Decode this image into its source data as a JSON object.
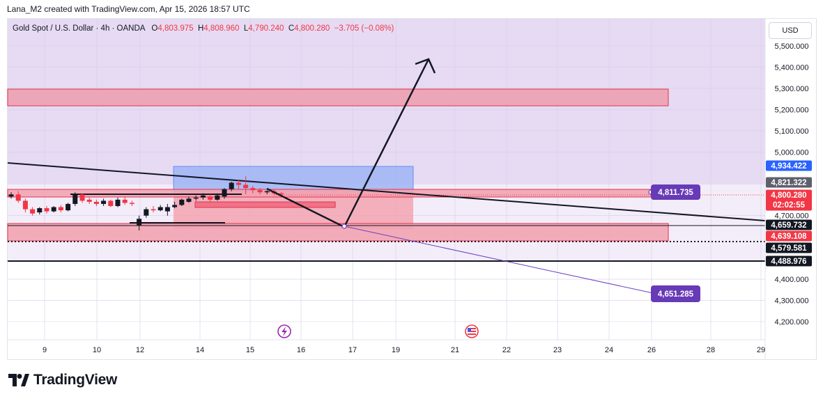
{
  "header": {
    "attribution": "Lana_M2 created with TradingView.com, Apr 15, 2026 18:57 UTC"
  },
  "symbol": {
    "name": "Gold Spot / U.S. Dollar · 4h · OANDA",
    "o_label": "O",
    "o_value": "4,803.975",
    "h_label": "H",
    "h_value": "4,808.960",
    "l_label": "L",
    "l_value": "4,790.240",
    "c_label": "C",
    "c_value": "4,800.280",
    "change": "−3.705 (−0.08%)"
  },
  "currency_button": "USD",
  "brand": {
    "name": "TradingView",
    "logo_icon": "tradingview-logo-icon"
  },
  "colors": {
    "bullish": "#131722",
    "bearish": "#f23645",
    "zone_fill": "#f0a0ad",
    "zone_border": "#e0334d",
    "blue_zone": "#9db4f5",
    "purple_bg": "#e6dbf3",
    "accent_purple": "#6a3fc0"
  },
  "chart_data": {
    "type": "candlestick",
    "y_axis": {
      "unit": "USD",
      "ticks": [
        "5,500.000",
        "5,400.000",
        "5,300.000",
        "5,200.000",
        "5,100.000",
        "5,000.000",
        "4,700.000",
        "4,400.000",
        "4,300.000",
        "4,200.000"
      ]
    },
    "x_axis": {
      "ticks": [
        "9",
        "10",
        "12",
        "14",
        "15",
        "16",
        "17",
        "19",
        "21",
        "22",
        "23",
        "24",
        "26",
        "28",
        "29"
      ]
    },
    "price_badges": [
      {
        "label": "4,934.422",
        "price": 4934.422,
        "color": "#2962ff"
      },
      {
        "label": "4,821.322",
        "price": 4821.322,
        "color": "#5d606b"
      },
      {
        "label": "4,800.280",
        "price": 4800.28,
        "color": "#f23645",
        "sub": "02:02:55"
      },
      {
        "label": "4,659.732",
        "price": 4659.732,
        "color": "#131722"
      },
      {
        "label": "4,639.108",
        "price": 4639.108,
        "color": "#f23645"
      },
      {
        "label": "4,579.581",
        "price": 4579.581,
        "color": "#131722"
      },
      {
        "label": "4,488.976",
        "price": 4488.976,
        "color": "#131722"
      }
    ],
    "annotations": [
      {
        "label": "4,811.735",
        "price": 4811.735
      },
      {
        "label": "4,651.285",
        "price": 4300
      }
    ],
    "candles": [
      {
        "o": 4790,
        "c": 4800,
        "h": 4810,
        "l": 4780
      },
      {
        "o": 4800,
        "c": 4770,
        "h": 4815,
        "l": 4760
      },
      {
        "o": 4770,
        "c": 4730,
        "h": 4780,
        "l": 4715
      },
      {
        "o": 4730,
        "c": 4710,
        "h": 4740,
        "l": 4700
      },
      {
        "o": 4715,
        "c": 4735,
        "h": 4740,
        "l": 4705
      },
      {
        "o": 4735,
        "c": 4720,
        "h": 4745,
        "l": 4710
      },
      {
        "o": 4720,
        "c": 4740,
        "h": 4745,
        "l": 4715
      },
      {
        "o": 4740,
        "c": 4725,
        "h": 4750,
        "l": 4715
      },
      {
        "o": 4725,
        "c": 4755,
        "h": 4760,
        "l": 4720
      },
      {
        "o": 4755,
        "c": 4800,
        "h": 4810,
        "l": 4745
      },
      {
        "o": 4800,
        "c": 4770,
        "h": 4805,
        "l": 4760
      },
      {
        "o": 4775,
        "c": 4765,
        "h": 4785,
        "l": 4755
      },
      {
        "o": 4765,
        "c": 4755,
        "h": 4775,
        "l": 4745
      },
      {
        "o": 4755,
        "c": 4770,
        "h": 4780,
        "l": 4745
      },
      {
        "o": 4770,
        "c": 4745,
        "h": 4775,
        "l": 4740
      },
      {
        "o": 4745,
        "c": 4775,
        "h": 4785,
        "l": 4740
      },
      {
        "o": 4775,
        "c": 4760,
        "h": 4790,
        "l": 4750
      },
      {
        "o": 4760,
        "c": 4755,
        "h": 4770,
        "l": 4745
      },
      {
        "o": 4655,
        "c": 4685,
        "h": 4700,
        "l": 4630
      },
      {
        "o": 4700,
        "c": 4730,
        "h": 4740,
        "l": 4690
      },
      {
        "o": 4730,
        "c": 4725,
        "h": 4745,
        "l": 4715
      },
      {
        "o": 4725,
        "c": 4740,
        "h": 4750,
        "l": 4720
      },
      {
        "o": 4720,
        "c": 4740,
        "h": 4755,
        "l": 4700
      },
      {
        "o": 4740,
        "c": 4750,
        "h": 4765,
        "l": 4735
      },
      {
        "o": 4750,
        "c": 4775,
        "h": 4780,
        "l": 4745
      },
      {
        "o": 4765,
        "c": 4780,
        "h": 4790,
        "l": 4760
      },
      {
        "o": 4780,
        "c": 4785,
        "h": 4795,
        "l": 4770
      },
      {
        "o": 4785,
        "c": 4795,
        "h": 4805,
        "l": 4775
      },
      {
        "o": 4790,
        "c": 4775,
        "h": 4800,
        "l": 4765
      },
      {
        "o": 4775,
        "c": 4795,
        "h": 4805,
        "l": 4770
      },
      {
        "o": 4790,
        "c": 4825,
        "h": 4830,
        "l": 4780
      },
      {
        "o": 4825,
        "c": 4855,
        "h": 4860,
        "l": 4815
      },
      {
        "o": 4855,
        "c": 4845,
        "h": 4870,
        "l": 4825
      },
      {
        "o": 4845,
        "c": 4830,
        "h": 4885,
        "l": 4800
      },
      {
        "o": 4830,
        "c": 4820,
        "h": 4840,
        "l": 4805
      },
      {
        "o": 4820,
        "c": 4810,
        "h": 4830,
        "l": 4800
      },
      {
        "o": 4810,
        "c": 4815,
        "h": 4820,
        "l": 4800
      },
      {
        "o": 4815,
        "c": 4805,
        "h": 4825,
        "l": 4795
      },
      {
        "o": 4805,
        "c": 4800,
        "h": 4810,
        "l": 4790
      }
    ]
  }
}
